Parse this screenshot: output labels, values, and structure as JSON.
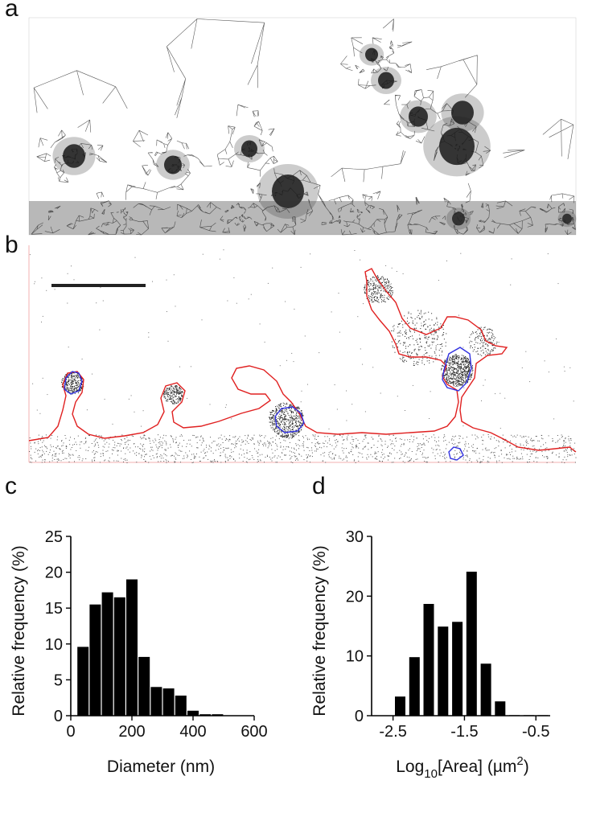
{
  "panels": {
    "a": "a",
    "b": "b",
    "c": "c",
    "d": "d"
  },
  "chart_data": [
    {
      "panel": "c",
      "type": "bar",
      "x": [
        40,
        80,
        120,
        160,
        200,
        240,
        280,
        320,
        360,
        400,
        440,
        480,
        520,
        560
      ],
      "values": [
        9.6,
        15.5,
        17.2,
        16.5,
        19.0,
        8.2,
        4.0,
        3.8,
        2.8,
        0.7,
        0.2,
        0.2,
        0.05,
        0.05
      ],
      "xlabel": "Diameter (nm)",
      "ylabel": "Relative frequency (%)",
      "xlim": [
        0,
        600
      ],
      "ylim": [
        0,
        25
      ],
      "xticks": [
        "0",
        "200",
        "400",
        "600"
      ],
      "yticks": [
        "0",
        "5",
        "10",
        "15",
        "20",
        "25"
      ]
    },
    {
      "panel": "d",
      "type": "bar",
      "x": [
        -2.4,
        -2.2,
        -2.0,
        -1.8,
        -1.6,
        -1.4,
        -1.2,
        -1.0,
        -0.8,
        -0.6,
        -0.4
      ],
      "values": [
        3.2,
        9.8,
        18.7,
        14.9,
        15.7,
        24.1,
        8.7,
        2.4,
        0.1,
        0.1,
        0.1
      ],
      "xlabel_main": "Log",
      "xlabel_sub": "10",
      "xlabel_rest": "[Area] (µm",
      "xlabel_sup": "2",
      "xlabel_end": ")",
      "ylabel": "Relative frequency (%)",
      "xlim": [
        -2.8,
        -0.3
      ],
      "ylim": [
        0,
        30
      ],
      "xticks": [
        "-2.5",
        "-1.5",
        "-0.5"
      ],
      "yticks": [
        "0",
        "10",
        "20",
        "30"
      ]
    }
  ],
  "colors": {
    "outline_outer": "#e02020",
    "outline_inner": "#3030e0",
    "bars": "#000000",
    "mesh": "#222222"
  }
}
